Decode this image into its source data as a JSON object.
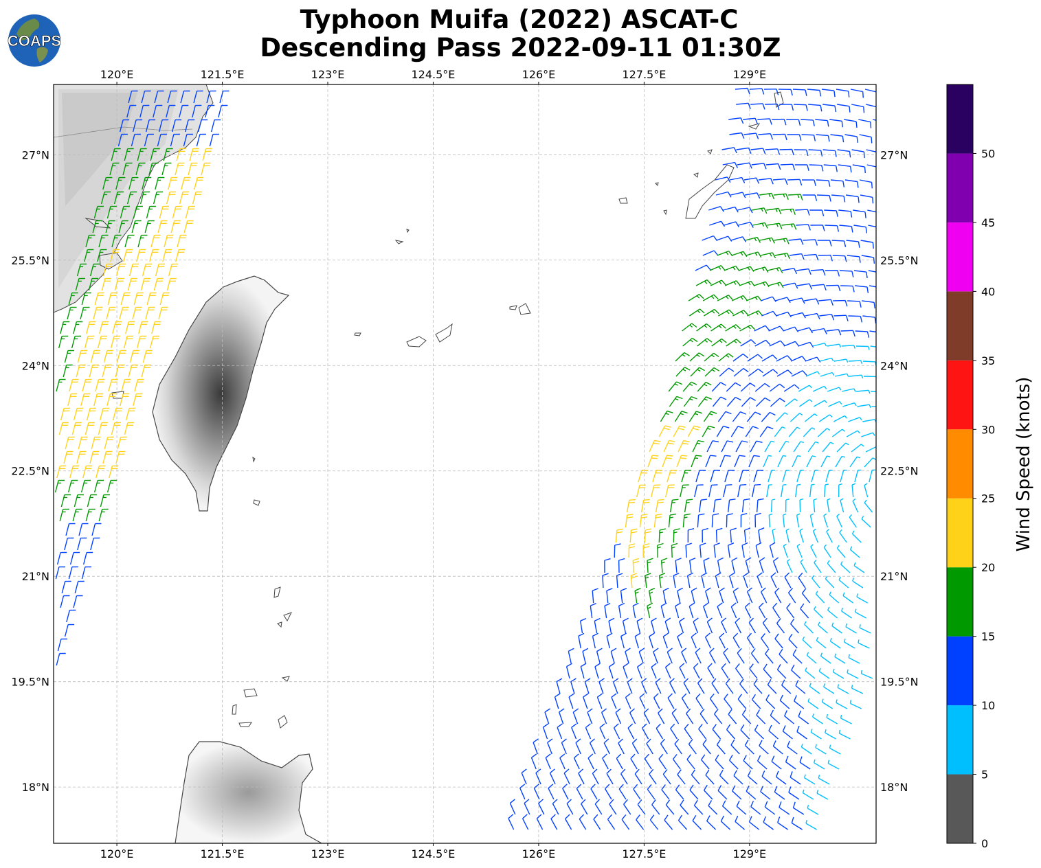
{
  "title": {
    "line1": "Typhoon Muifa (2022) ASCAT-C",
    "line2": "Descending Pass 2022-09-11 01:30Z"
  },
  "logo": {
    "text": "COAPS",
    "icon": "globe-logo-icon"
  },
  "map": {
    "lon_range": [
      119.1,
      130.8
    ],
    "lat_range": [
      17.2,
      28.0
    ],
    "lon_ticks": [
      "120°E",
      "121.5°E",
      "123°E",
      "124.5°E",
      "126°E",
      "127.5°E",
      "129°E"
    ],
    "lon_tick_values": [
      120,
      121.5,
      123,
      124.5,
      126,
      127.5,
      129
    ],
    "lat_ticks": [
      "27°N",
      "25.5°N",
      "24°N",
      "22.5°N",
      "21°N",
      "19.5°N",
      "18°N"
    ],
    "lat_tick_values": [
      27,
      25.5,
      24,
      22.5,
      21,
      19.5,
      18
    ],
    "grid": true,
    "land_shading": "grayscale terrain"
  },
  "colorbar": {
    "label": "Wind Speed (knots)",
    "ticks": [
      "0",
      "5",
      "10",
      "15",
      "20",
      "25",
      "30",
      "35",
      "40",
      "45",
      "50"
    ],
    "bins": [
      {
        "min": 0,
        "max": 5,
        "color": "#585858"
      },
      {
        "min": 5,
        "max": 10,
        "color": "#00bfff"
      },
      {
        "min": 10,
        "max": 15,
        "color": "#0040ff"
      },
      {
        "min": 15,
        "max": 20,
        "color": "#009900"
      },
      {
        "min": 20,
        "max": 25,
        "color": "#ffd21a"
      },
      {
        "min": 25,
        "max": 30,
        "color": "#ff8c00"
      },
      {
        "min": 30,
        "max": 35,
        "color": "#ff1414"
      },
      {
        "min": 35,
        "max": 40,
        "color": "#7f3c28"
      },
      {
        "min": 40,
        "max": 45,
        "color": "#f000f0"
      },
      {
        "min": 45,
        "max": 50,
        "color": "#8000b0"
      },
      {
        "min": 50,
        "max": 55,
        "color": "#2a0060"
      }
    ]
  }
}
